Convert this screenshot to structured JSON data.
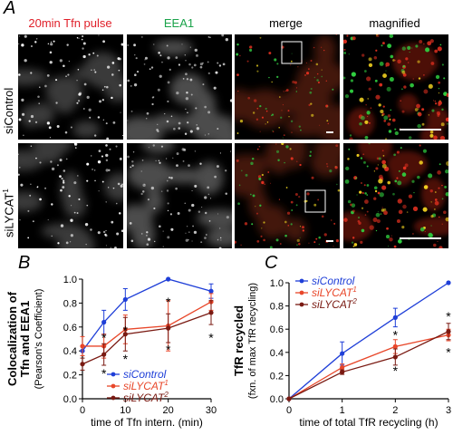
{
  "panel_a": {
    "letter": "A",
    "columns": [
      {
        "label": "20min Tfn pulse",
        "color": "#e0202a"
      },
      {
        "label": "EEA1",
        "color": "#1aa34a"
      },
      {
        "label": "merge",
        "color": "#000000"
      },
      {
        "label": "magnified",
        "color": "#000000"
      }
    ],
    "rows": [
      {
        "label": "siControl"
      },
      {
        "label": "siLYCAT",
        "superscript": "1"
      }
    ]
  },
  "chart_data": [
    {
      "type": "line",
      "panel": "B",
      "xlabel": "time of Tfn intern. (min)",
      "ylabel_line1": "Colocalization of",
      "ylabel_line2": "Tfn and EEA1",
      "ylabel_line3": "(Pearson's Coefficient)",
      "x": [
        0,
        5,
        10,
        20,
        30
      ],
      "xlim": [
        0,
        30
      ],
      "ylim": [
        0.0,
        1.0
      ],
      "xticks": [
        "0",
        "10",
        "20",
        "30"
      ],
      "yticks": [
        "0.0",
        "0.2",
        "0.4",
        "0.6",
        "0.8",
        "1.0"
      ],
      "legend_position": "bottom-right",
      "series": [
        {
          "name": "siControl",
          "name_sup": "",
          "color": "#1f3fd8",
          "values": [
            0.4,
            0.64,
            0.83,
            1.0,
            0.9
          ],
          "err": [
            0.04,
            0.1,
            0.09,
            0.0,
            0.06
          ]
        },
        {
          "name": "siLYCAT",
          "name_sup": "1",
          "color": "#e8472a",
          "values": [
            0.44,
            0.44,
            0.58,
            0.61,
            0.81
          ],
          "err": [
            0.08,
            0.1,
            0.12,
            0.21,
            0.07
          ]
        },
        {
          "name": "siLYCAT",
          "name_sup": "2",
          "color": "#7a1a12",
          "values": [
            0.29,
            0.37,
            0.54,
            0.59,
            0.72
          ],
          "err": [
            0.05,
            0.09,
            0.14,
            0.12,
            0.1
          ]
        }
      ],
      "markers": [
        {
          "x": 5,
          "y": 0.52,
          "text": "*"
        },
        {
          "x": 5,
          "y": 0.22,
          "text": "*"
        },
        {
          "x": 10,
          "y": 0.58,
          "text": "*"
        },
        {
          "x": 10,
          "y": 0.34,
          "text": "*"
        },
        {
          "x": 20,
          "y": 0.82,
          "text": "*"
        },
        {
          "x": 20,
          "y": 0.42,
          "text": "*"
        },
        {
          "x": 30,
          "y": 0.52,
          "text": "*"
        }
      ]
    },
    {
      "type": "line",
      "panel": "C",
      "xlabel": "time of total TfR recycling (h)",
      "ylabel_line1": "TfR recycled",
      "ylabel_line2": "(fxn. of max TfR recycling)",
      "x": [
        0,
        1,
        2,
        3
      ],
      "xlim": [
        0,
        3
      ],
      "ylim": [
        0.0,
        1.0
      ],
      "xticks": [
        "0",
        "1",
        "2",
        "3"
      ],
      "yticks": [
        "0.0",
        "0.2",
        "0.4",
        "0.6",
        "0.8",
        "1.0"
      ],
      "legend_position": "top-left",
      "series": [
        {
          "name": "siControl",
          "name_sup": "",
          "color": "#1f3fd8",
          "values": [
            0.0,
            0.39,
            0.7,
            1.0
          ],
          "err": [
            0.0,
            0.1,
            0.08,
            0.0
          ]
        },
        {
          "name": "siLYCAT",
          "name_sup": "1",
          "color": "#e8472a",
          "values": [
            0.0,
            0.27,
            0.45,
            0.55
          ],
          "err": [
            0.0,
            0.03,
            0.06,
            0.05
          ]
        },
        {
          "name": "siLYCAT",
          "name_sup": "2",
          "color": "#7a1a12",
          "values": [
            0.0,
            0.23,
            0.36,
            0.58
          ],
          "err": [
            0.0,
            0.02,
            0.07,
            0.07
          ]
        }
      ],
      "markers": [
        {
          "x": 2,
          "y": 0.56,
          "text": "*"
        },
        {
          "x": 2,
          "y": 0.25,
          "text": "*"
        },
        {
          "x": 3,
          "y": 0.72,
          "text": "*"
        },
        {
          "x": 3,
          "y": 0.41,
          "text": "*"
        }
      ]
    }
  ]
}
